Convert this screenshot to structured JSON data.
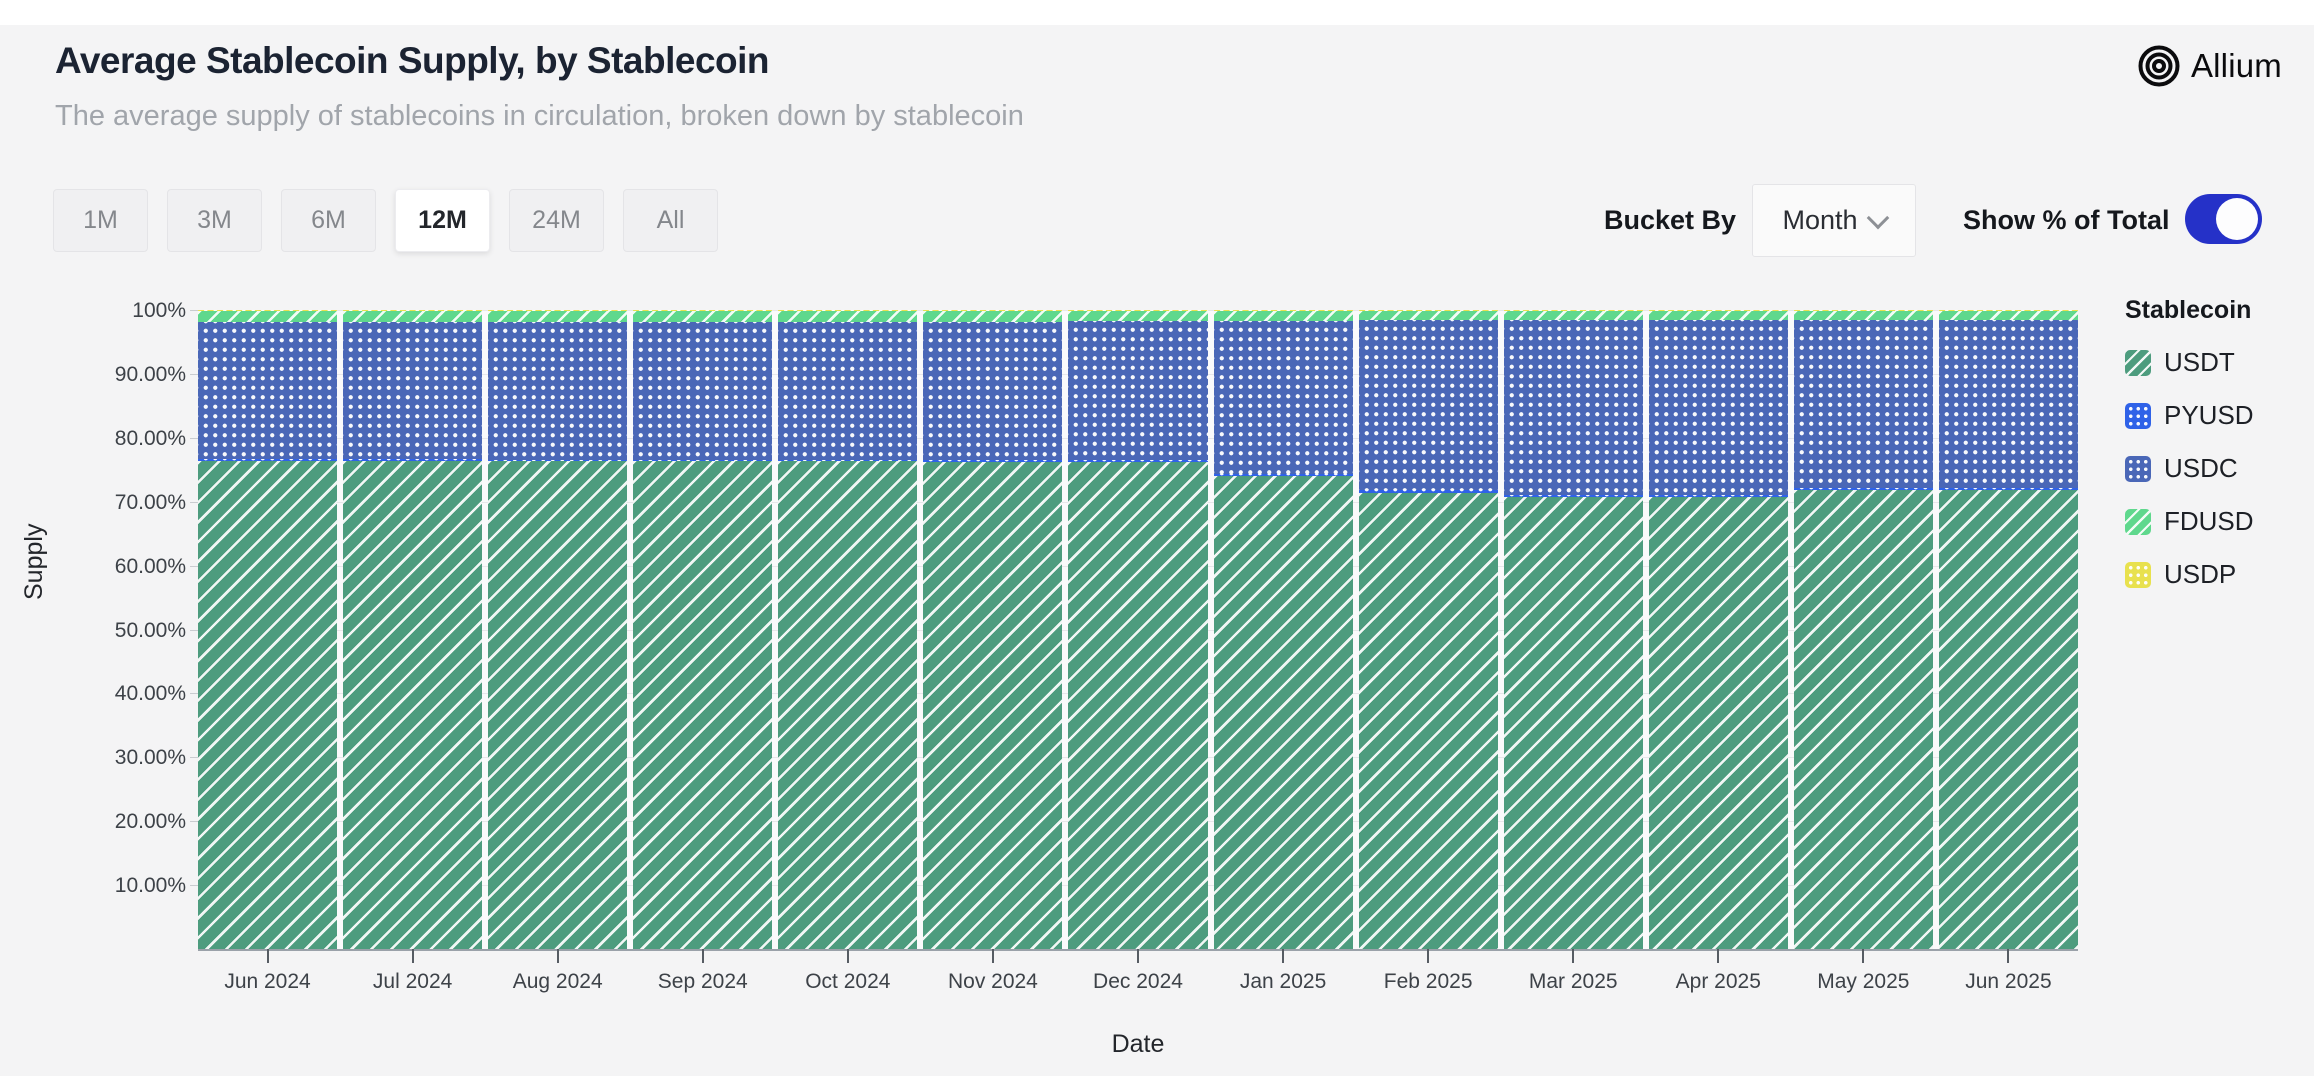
{
  "header": {
    "title": "Average Stablecoin Supply, by Stablecoin",
    "subtitle": "The average supply of stablecoins in circulation, broken down by stablecoin",
    "brand": "Allium"
  },
  "controls": {
    "ranges": [
      {
        "label": "1M",
        "selected": false
      },
      {
        "label": "3M",
        "selected": false
      },
      {
        "label": "6M",
        "selected": false
      },
      {
        "label": "12M",
        "selected": true
      },
      {
        "label": "24M",
        "selected": false
      },
      {
        "label": "All",
        "selected": false
      }
    ],
    "bucket_by_label": "Bucket By",
    "bucket_value": "Month",
    "toggle_label": "Show % of Total",
    "toggle_on": true
  },
  "chart_data": {
    "type": "bar",
    "stacked": true,
    "percent_of_total": true,
    "title": "Average Stablecoin Supply, by Stablecoin",
    "xlabel": "Date",
    "ylabel": "Supply",
    "ylim": [
      0,
      100
    ],
    "grid": true,
    "legend_title": "Stablecoin",
    "legend_position": "right",
    "yticks": [
      {
        "value": 100,
        "label": "100%"
      },
      {
        "value": 90,
        "label": "90.00%"
      },
      {
        "value": 80,
        "label": "80.00%"
      },
      {
        "value": 70,
        "label": "70.00%"
      },
      {
        "value": 60,
        "label": "60.00%"
      },
      {
        "value": 50,
        "label": "50.00%"
      },
      {
        "value": 40,
        "label": "40.00%"
      },
      {
        "value": 30,
        "label": "30.00%"
      },
      {
        "value": 20,
        "label": "20.00%"
      },
      {
        "value": 10,
        "label": "10.00%"
      }
    ],
    "categories": [
      "Jun 2024",
      "Jul 2024",
      "Aug 2024",
      "Sep 2024",
      "Oct 2024",
      "Nov 2024",
      "Dec 2024",
      "Jan 2025",
      "Feb 2025",
      "Mar 2025",
      "Apr 2025",
      "May 2025",
      "Jun 2025"
    ],
    "series": [
      {
        "name": "USDT",
        "color": "#4d9c7e",
        "pattern": "diag",
        "values": [
          76.4,
          76.4,
          76.3,
          76.3,
          76.3,
          76.2,
          76.2,
          74.0,
          71.4,
          70.7,
          70.7,
          71.8,
          71.8
        ]
      },
      {
        "name": "PYUSD",
        "color": "#2f62e8",
        "pattern": "dots",
        "values": [
          0.3,
          0.3,
          0.3,
          0.3,
          0.3,
          0.3,
          0.3,
          0.4,
          0.4,
          0.4,
          0.4,
          0.4,
          0.4
        ]
      },
      {
        "name": "USDC",
        "color": "#4a67b7",
        "pattern": "dots",
        "values": [
          21.4,
          21.4,
          21.5,
          21.6,
          21.6,
          21.7,
          21.8,
          23.9,
          26.6,
          27.3,
          27.3,
          26.2,
          26.2
        ]
      },
      {
        "name": "FDUSD",
        "color": "#5fd88d",
        "pattern": "diag",
        "values": [
          1.7,
          1.7,
          1.7,
          1.6,
          1.6,
          1.6,
          1.5,
          1.5,
          1.4,
          1.4,
          1.4,
          1.4,
          1.4
        ]
      },
      {
        "name": "USDP",
        "color": "#e8e14e",
        "pattern": "dots",
        "values": [
          0.2,
          0.2,
          0.2,
          0.2,
          0.2,
          0.2,
          0.2,
          0.2,
          0.2,
          0.2,
          0.2,
          0.2,
          0.2
        ]
      }
    ]
  }
}
